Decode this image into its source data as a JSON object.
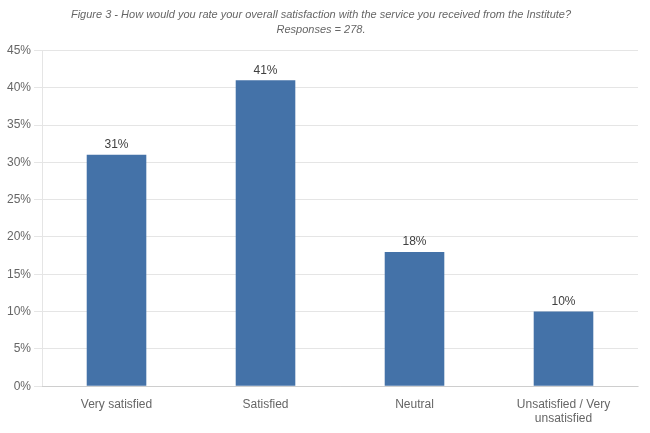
{
  "chart_data": {
    "type": "bar",
    "title": "Figure 3 - How would you rate your overall satisfaction with the service you received from the Institute?",
    "subtitle": "Responses = 278.",
    "categories": [
      "Very satisfied",
      "Satisfied",
      "Neutral",
      "Unsatisfied / Very\nunsatisfied"
    ],
    "values": [
      31,
      41,
      18,
      10
    ],
    "value_labels": [
      "31%",
      "41%",
      "18%",
      "10%"
    ],
    "data_labels": true,
    "color": "#4472a8",
    "ylim": [
      0,
      45
    ],
    "yticks": [
      {
        "value": 0,
        "label": "0%"
      },
      {
        "value": 5,
        "label": "5%"
      },
      {
        "value": 10,
        "label": "10%"
      },
      {
        "value": 15,
        "label": "15%"
      },
      {
        "value": 20,
        "label": "20%"
      },
      {
        "value": 25,
        "label": "25%"
      },
      {
        "value": 30,
        "label": "30%"
      },
      {
        "value": 35,
        "label": "35%"
      },
      {
        "value": 40,
        "label": "40%"
      },
      {
        "value": 45,
        "label": "45%"
      }
    ],
    "grid": true
  }
}
